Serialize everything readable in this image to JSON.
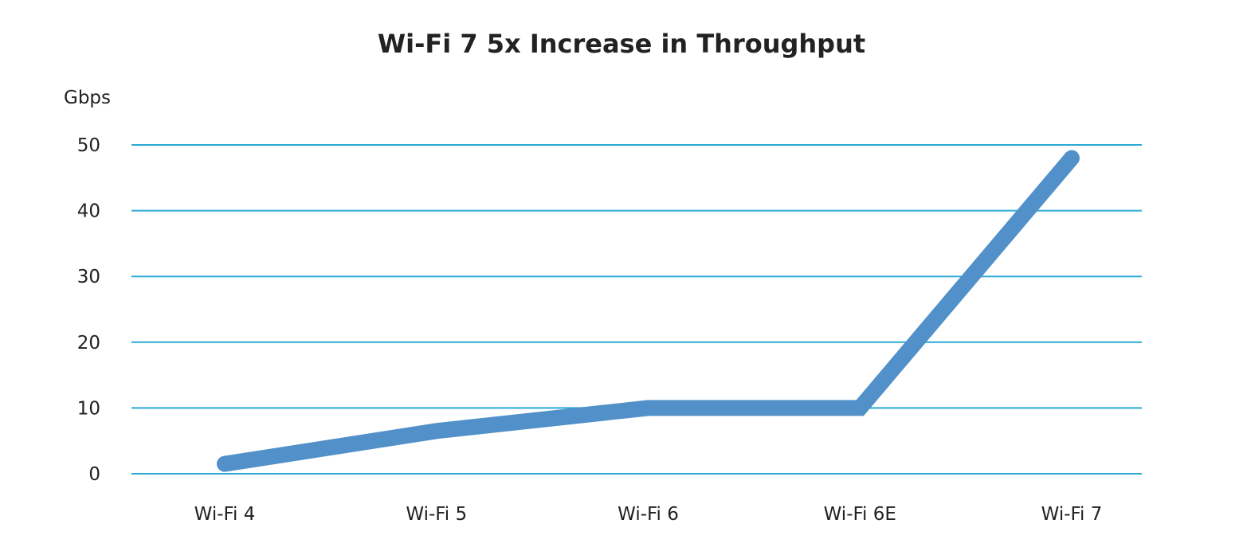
{
  "chart_data": {
    "type": "line",
    "title": "Wi-Fi 7 5x Increase in Throughput",
    "ylabel": "Gbps",
    "xlabel": "",
    "categories": [
      "Wi-Fi 4",
      "Wi-Fi 5",
      "Wi-Fi 6",
      "Wi-Fi 6E",
      "Wi-Fi 7"
    ],
    "values": [
      1.5,
      6.5,
      10,
      10,
      48
    ],
    "ylim": [
      0,
      50
    ],
    "yticks": [
      0,
      10,
      20,
      30,
      40,
      50
    ],
    "grid": true,
    "legend": "none",
    "colors": {
      "line": "#5190c8",
      "grid": "#2aa9d6"
    }
  }
}
